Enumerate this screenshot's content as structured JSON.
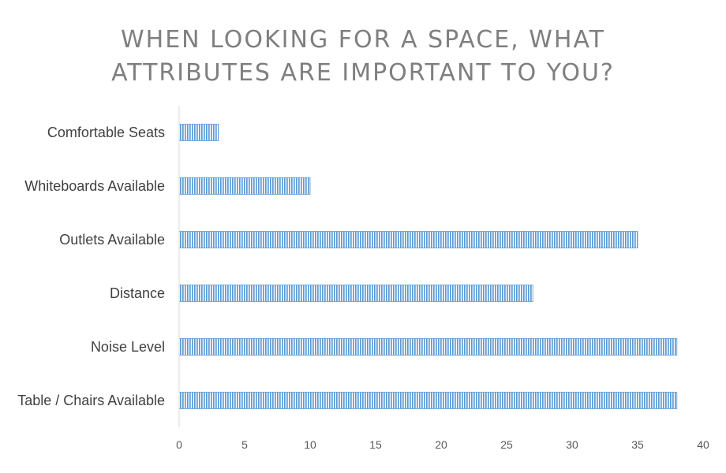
{
  "chart_data": {
    "type": "bar",
    "orientation": "horizontal",
    "title_lines": [
      "WHEN LOOKING FOR A SPACE, WHAT",
      "ATTRIBUTES ARE IMPORTANT TO YOU?"
    ],
    "categories": [
      "Comfortable Seats",
      "Whiteboards Available",
      "Outlets Available",
      "Distance",
      "Noise Level",
      "Table / Chairs Available"
    ],
    "values": [
      3,
      10,
      35,
      27,
      38,
      38
    ],
    "xlim": [
      0,
      40
    ],
    "xticks": [
      "0",
      "5",
      "10",
      "15",
      "20",
      "25",
      "30",
      "35",
      "40"
    ],
    "xlabel": "",
    "ylabel": "",
    "grid": false,
    "legend": "none",
    "bar_color": "#5b9bd5",
    "bar_pattern": "vertical-stripes"
  }
}
